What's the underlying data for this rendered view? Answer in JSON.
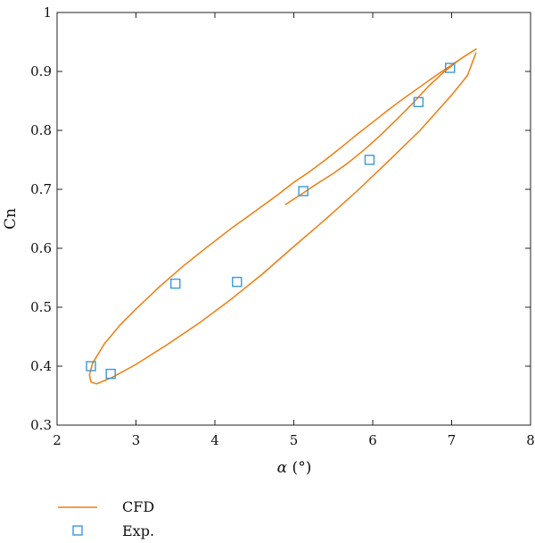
{
  "chart_data": {
    "type": "line",
    "title": "",
    "xlabel_symbol": "α",
    "xlabel_unit": " (°)",
    "ylabel": "Cn",
    "xlim": [
      2,
      8
    ],
    "ylim": [
      0.3,
      1.0
    ],
    "x_ticks": [
      2,
      3,
      4,
      5,
      6,
      7,
      8
    ],
    "y_ticks": [
      0.3,
      0.4,
      0.5,
      0.6,
      0.7,
      0.8,
      0.9,
      1.0
    ],
    "x_tick_labels": [
      "2",
      "3",
      "4",
      "5",
      "6",
      "7",
      "8"
    ],
    "y_tick_labels": [
      "0.3",
      "0.4",
      "0.5",
      "0.6",
      "0.7",
      "0.8",
      "0.9",
      "1"
    ],
    "grid": false,
    "legend_position": "bottom-left",
    "series": [
      {
        "name": "CFD",
        "style": "line",
        "color": "#F07C0E",
        "points": [
          [
            4.89,
            0.674
          ],
          [
            5.1,
            0.692
          ],
          [
            5.3,
            0.71
          ],
          [
            5.5,
            0.727
          ],
          [
            5.7,
            0.746
          ],
          [
            5.9,
            0.768
          ],
          [
            6.1,
            0.792
          ],
          [
            6.3,
            0.818
          ],
          [
            6.5,
            0.845
          ],
          [
            6.7,
            0.874
          ],
          [
            6.9,
            0.899
          ],
          [
            7.1,
            0.92
          ],
          [
            7.25,
            0.933
          ],
          [
            7.31,
            0.938
          ],
          [
            7.2,
            0.929
          ],
          [
            7.0,
            0.911
          ],
          [
            6.8,
            0.893
          ],
          [
            6.6,
            0.874
          ],
          [
            6.4,
            0.855
          ],
          [
            6.2,
            0.835
          ],
          [
            6.0,
            0.814
          ],
          [
            5.8,
            0.793
          ],
          [
            5.6,
            0.771
          ],
          [
            5.4,
            0.75
          ],
          [
            5.2,
            0.73
          ],
          [
            5.0,
            0.712
          ],
          [
            4.8,
            0.691
          ],
          [
            4.5,
            0.662
          ],
          [
            4.2,
            0.633
          ],
          [
            3.9,
            0.602
          ],
          [
            3.6,
            0.57
          ],
          [
            3.3,
            0.535
          ],
          [
            3.0,
            0.497
          ],
          [
            2.8,
            0.47
          ],
          [
            2.6,
            0.438
          ],
          [
            2.45,
            0.405
          ],
          [
            2.41,
            0.385
          ],
          [
            2.43,
            0.373
          ],
          [
            2.5,
            0.37
          ],
          [
            2.7,
            0.381
          ],
          [
            3.0,
            0.403
          ],
          [
            3.4,
            0.437
          ],
          [
            3.8,
            0.473
          ],
          [
            4.2,
            0.513
          ],
          [
            4.6,
            0.556
          ],
          [
            5.0,
            0.603
          ],
          [
            5.4,
            0.649
          ],
          [
            5.8,
            0.697
          ],
          [
            6.2,
            0.748
          ],
          [
            6.6,
            0.8
          ],
          [
            7.0,
            0.86
          ],
          [
            7.2,
            0.893
          ],
          [
            7.31,
            0.932
          ]
        ]
      },
      {
        "name": "Exp.",
        "style": "marker-square",
        "color": "#3A9AD9",
        "points": [
          [
            2.43,
            0.4
          ],
          [
            2.68,
            0.387
          ],
          [
            3.5,
            0.54
          ],
          [
            4.28,
            0.543
          ],
          [
            5.12,
            0.697
          ],
          [
            5.96,
            0.75
          ],
          [
            6.58,
            0.848
          ],
          [
            6.98,
            0.906
          ]
        ]
      }
    ]
  }
}
